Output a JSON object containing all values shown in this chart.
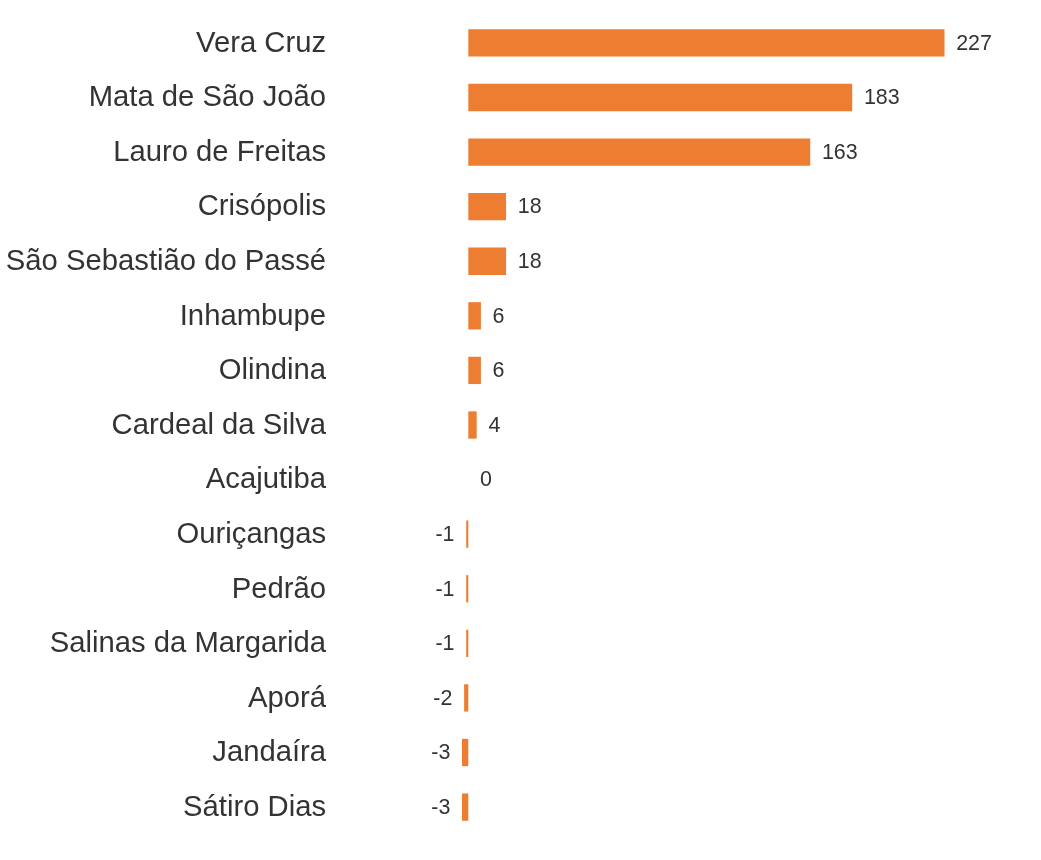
{
  "chart_data": {
    "type": "bar",
    "orientation": "horizontal",
    "data_labels": true,
    "color": "#ed7d31",
    "categories": [
      "Vera Cruz",
      "Mata de São João",
      "Lauro de Freitas",
      "Crisópolis",
      "São Sebastião do Passé",
      "Inhambupe",
      "Olindina",
      "Cardeal da Silva",
      "Acajutiba",
      "Ouriçangas",
      "Pedrão",
      "Salinas da Margarida",
      "Aporá",
      "Jandaíra",
      "Sátiro Dias"
    ],
    "values": [
      227,
      183,
      163,
      18,
      18,
      6,
      6,
      4,
      0,
      -1,
      -1,
      -1,
      -2,
      -3,
      -3
    ]
  }
}
